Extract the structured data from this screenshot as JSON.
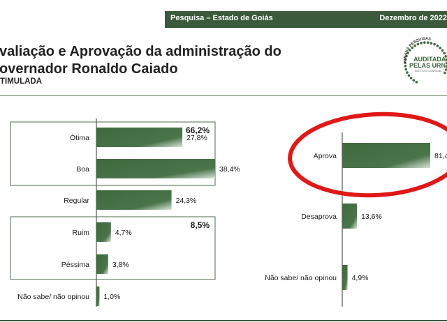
{
  "header": {
    "left": "Pesquisa – Estado de Goiás",
    "right": "Dezembro de 2022"
  },
  "title_line1": "valiação e Aprovação da administração do",
  "title_line2": "overnador Ronaldo Caiado",
  "subtitle": "TIMULADA",
  "logo": {
    "text1": "PARANÁ PESQUISAS",
    "text2": "AUDITADA",
    "text3": "PELAS URNAS",
    "text4": "INSTITUTO CONFIÁVEL"
  },
  "colors": {
    "bar": "#3e6a3e",
    "bar_light": "#c9d8c9",
    "header": "#3b5a3b",
    "circle": "#e01818",
    "frame": "#4a6e4a"
  },
  "chart_data": [
    {
      "type": "bar",
      "orientation": "horizontal",
      "categories": [
        "Ótima",
        "Boa",
        "Regular",
        "Ruim",
        "Péssima",
        "Não sabe/ não opinou"
      ],
      "values": [
        27.8,
        38.4,
        24.3,
        4.7,
        3.8,
        1.0
      ],
      "value_labels": [
        "27,8%",
        "38,4%",
        "24,3%",
        "4,7%",
        "3,8%",
        "1,0%"
      ],
      "groups": [
        {
          "label": "66,2%",
          "members": [
            "Ótima",
            "Boa"
          ]
        },
        {
          "label": "8,5%",
          "members": [
            "Ruim",
            "Péssima"
          ]
        }
      ]
    },
    {
      "type": "bar",
      "orientation": "horizontal",
      "categories": [
        "Aprova",
        "Desaprova",
        "Não sabe/ não opinou"
      ],
      "values": [
        81.4,
        13.6,
        4.9
      ],
      "value_labels": [
        "81,4",
        "13,6%",
        "4,9%"
      ],
      "highlight": "Aprova"
    }
  ]
}
